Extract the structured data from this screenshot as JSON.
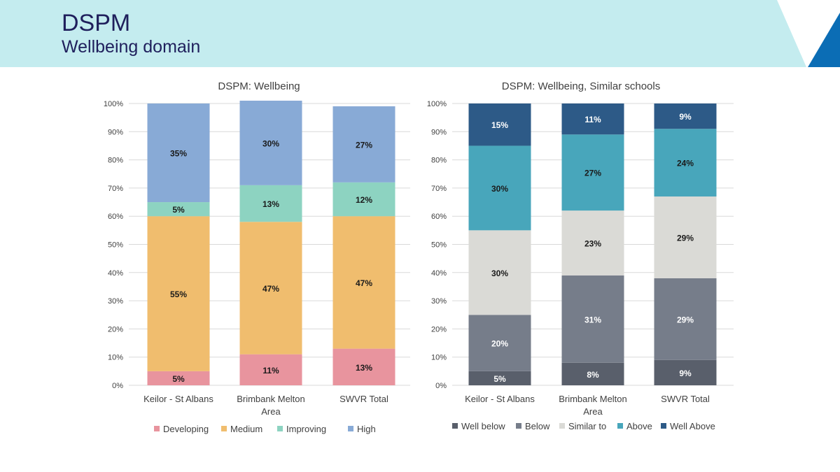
{
  "header": {
    "title": "DSPM",
    "subtitle": "Wellbeing domain",
    "band_color": "#c4ecef",
    "accent_color": "#0b6db5"
  },
  "chart_data": [
    {
      "type": "bar",
      "stacked": true,
      "title": "DSPM: Wellbeing",
      "categories": [
        [
          "Keilor - St Albans"
        ],
        [
          "Brimbank Melton",
          "Area"
        ],
        [
          "SWVR Total"
        ]
      ],
      "y_ticks": [
        "0%",
        "10%",
        "20%",
        "30%",
        "40%",
        "50%",
        "60%",
        "70%",
        "80%",
        "90%",
        "100%"
      ],
      "ylim": [
        0,
        100
      ],
      "grid": true,
      "legend_position": "bottom",
      "series": [
        {
          "name": "Developing",
          "color": "#e8949e",
          "label_color": "#1a1a1a",
          "values": [
            5,
            11,
            13
          ],
          "labels": [
            "5%",
            "11%",
            "13%"
          ]
        },
        {
          "name": "Medium",
          "color": "#f0bd6e",
          "label_color": "#1a1a1a",
          "values": [
            55,
            47,
            47
          ],
          "labels": [
            "55%",
            "47%",
            "47%"
          ]
        },
        {
          "name": "Improving",
          "color": "#8dd3c1",
          "label_color": "#1a1a1a",
          "values": [
            5,
            13,
            12
          ],
          "labels": [
            "5%",
            "13%",
            "12%"
          ]
        },
        {
          "name": "High",
          "color": "#88aad6",
          "label_color": "#1a1a1a",
          "values": [
            35,
            30,
            27
          ],
          "labels": [
            "35%",
            "30%",
            "27%"
          ]
        }
      ]
    },
    {
      "type": "bar",
      "stacked": true,
      "title": "DSPM: Wellbeing, Similar schools",
      "categories": [
        [
          "Keilor - St Albans"
        ],
        [
          "Brimbank Melton",
          "Area"
        ],
        [
          "SWVR Total"
        ]
      ],
      "y_ticks": [
        "0%",
        "10%",
        "20%",
        "30%",
        "40%",
        "50%",
        "60%",
        "70%",
        "80%",
        "90%",
        "100%"
      ],
      "ylim": [
        0,
        100
      ],
      "grid": true,
      "legend_position": "bottom",
      "series": [
        {
          "name": "Well below",
          "color": "#595f6b",
          "label_color": "#ffffff",
          "values": [
            5,
            8,
            9
          ],
          "labels": [
            "5%",
            "8%",
            "9%"
          ]
        },
        {
          "name": "Below",
          "color": "#767d8a",
          "label_color": "#ffffff",
          "values": [
            20,
            31,
            29
          ],
          "labels": [
            "20%",
            "31%",
            "29%"
          ]
        },
        {
          "name": "Similar to",
          "color": "#dadad6",
          "label_color": "#1a1a1a",
          "values": [
            30,
            23,
            29
          ],
          "labels": [
            "30%",
            "23%",
            "29%"
          ]
        },
        {
          "name": "Above",
          "color": "#48a6bb",
          "label_color": "#1a1a1a",
          "values": [
            30,
            27,
            24
          ],
          "labels": [
            "30%",
            "27%",
            "24%"
          ]
        },
        {
          "name": "Well Above",
          "color": "#2d5a87",
          "label_color": "#ffffff",
          "values": [
            15,
            11,
            9
          ],
          "labels": [
            "15%",
            "11%",
            "9%"
          ]
        }
      ]
    }
  ]
}
